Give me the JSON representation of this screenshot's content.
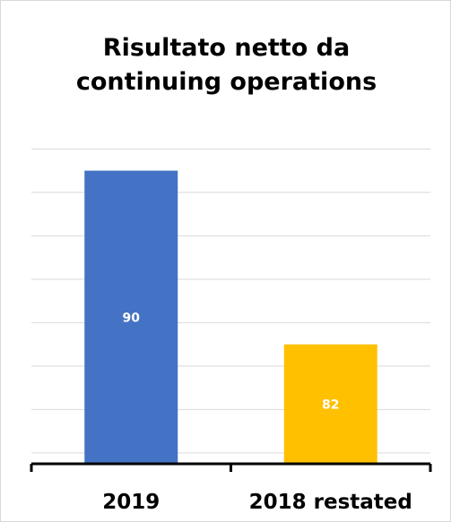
{
  "chart_data": {
    "type": "bar",
    "title_lines": [
      "Risultato netto da",
      "continuing operations"
    ],
    "categories": [
      "2019",
      "2018 restated"
    ],
    "values": [
      90,
      82
    ],
    "data_labels": [
      "90",
      "82"
    ],
    "colors": [
      "#4472c4",
      "#ffc000"
    ],
    "ylim": [
      76.5,
      92.5
    ],
    "yticks": [
      77,
      79,
      81,
      83,
      85,
      87,
      89,
      91
    ],
    "grid": true,
    "legend": "none"
  }
}
